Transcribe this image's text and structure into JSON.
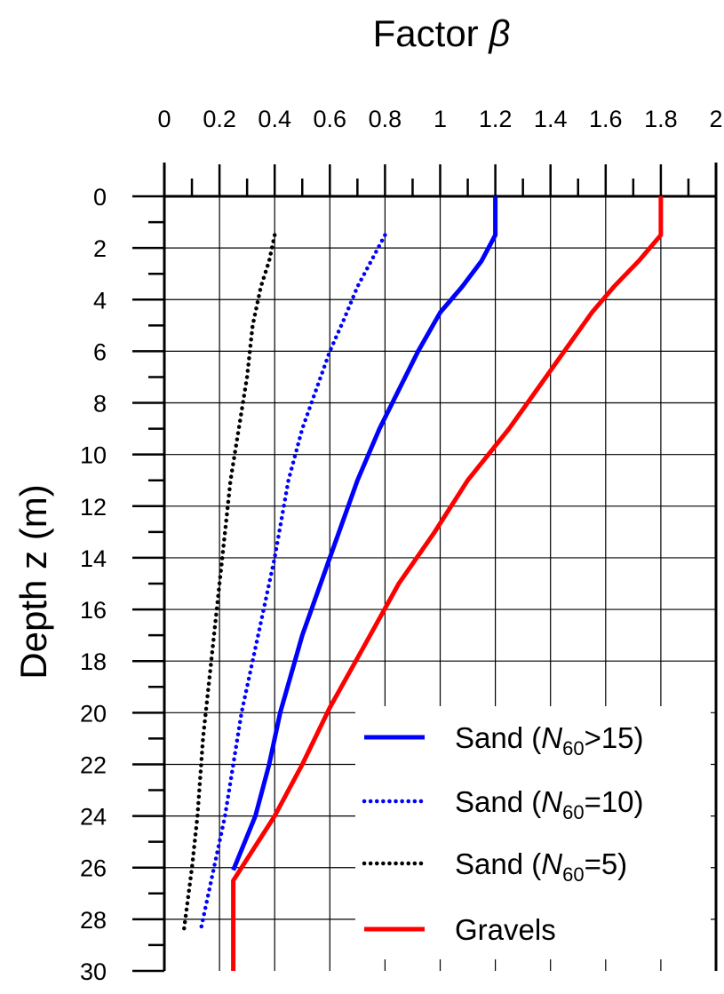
{
  "chart_data": {
    "type": "line",
    "title_prefix": "Factor ",
    "title_symbol": "β",
    "ylabel": "Depth z (m)",
    "x_axis_position": "top",
    "y_axis_inverted": true,
    "xlim": [
      0,
      2
    ],
    "ylim": [
      0,
      30
    ],
    "x_ticks": [
      "0",
      "0.2",
      "0.4",
      "0.6",
      "0.8",
      "1",
      "1.2",
      "1.4",
      "1.6",
      "1.8",
      "2"
    ],
    "y_ticks": [
      "0",
      "2",
      "4",
      "6",
      "8",
      "10",
      "12",
      "14",
      "16",
      "18",
      "20",
      "22",
      "24",
      "26",
      "28",
      "30"
    ],
    "grid": true,
    "legend_position": "bottom-right",
    "series": [
      {
        "name": "Sand (N60>15)",
        "label_pre": "Sand (",
        "label_italic": "N",
        "label_sub": "60",
        "label_post": ">15)",
        "color": "#0000ff",
        "style": "solid",
        "points": [
          [
            1.2,
            0
          ],
          [
            1.2,
            1.5
          ],
          [
            1.15,
            2.5
          ],
          [
            1.08,
            3.5
          ],
          [
            1.0,
            4.5
          ],
          [
            0.92,
            6
          ],
          [
            0.85,
            7.5
          ],
          [
            0.78,
            9
          ],
          [
            0.7,
            11
          ],
          [
            0.6,
            14
          ],
          [
            0.5,
            17
          ],
          [
            0.42,
            20
          ],
          [
            0.38,
            22
          ],
          [
            0.33,
            24
          ],
          [
            0.25,
            26.1
          ]
        ]
      },
      {
        "name": "Sand (N60=10)",
        "label_pre": "Sand (",
        "label_italic": "N",
        "label_sub": "60",
        "label_post": "=10)",
        "color": "#0000ff",
        "style": "dotted",
        "points": [
          [
            0.8,
            1.5
          ],
          [
            0.75,
            2.5
          ],
          [
            0.7,
            3.5
          ],
          [
            0.65,
            4.8
          ],
          [
            0.6,
            6
          ],
          [
            0.55,
            7.5
          ],
          [
            0.5,
            9
          ],
          [
            0.45,
            11
          ],
          [
            0.4,
            14
          ],
          [
            0.34,
            17
          ],
          [
            0.28,
            20
          ],
          [
            0.25,
            22
          ],
          [
            0.22,
            24
          ],
          [
            0.18,
            26
          ],
          [
            0.13,
            28.5
          ]
        ]
      },
      {
        "name": "Sand (N60=5)",
        "label_pre": "Sand (",
        "label_italic": "N",
        "label_sub": "60",
        "label_post": "=5)",
        "color": "#000000",
        "style": "dotted",
        "points": [
          [
            0.4,
            1.5
          ],
          [
            0.38,
            2.5
          ],
          [
            0.35,
            3.5
          ],
          [
            0.32,
            5
          ],
          [
            0.3,
            7
          ],
          [
            0.27,
            9
          ],
          [
            0.24,
            11
          ],
          [
            0.22,
            13
          ],
          [
            0.19,
            16
          ],
          [
            0.16,
            19
          ],
          [
            0.14,
            21
          ],
          [
            0.12,
            24
          ],
          [
            0.1,
            26
          ],
          [
            0.07,
            28.5
          ]
        ]
      },
      {
        "name": "Gravels",
        "label_pre": "Gravels",
        "label_italic": "",
        "label_sub": "",
        "label_post": "",
        "color": "#ff0000",
        "style": "solid",
        "points": [
          [
            1.8,
            0
          ],
          [
            1.8,
            1.5
          ],
          [
            1.72,
            2.5
          ],
          [
            1.63,
            3.5
          ],
          [
            1.55,
            4.5
          ],
          [
            1.45,
            6
          ],
          [
            1.35,
            7.5
          ],
          [
            1.25,
            9
          ],
          [
            1.1,
            11
          ],
          [
            0.98,
            13
          ],
          [
            0.85,
            15
          ],
          [
            0.72,
            17.5
          ],
          [
            0.6,
            19.8
          ],
          [
            0.5,
            22
          ],
          [
            0.4,
            24
          ],
          [
            0.25,
            26.5
          ],
          [
            0.25,
            30
          ]
        ]
      }
    ]
  }
}
